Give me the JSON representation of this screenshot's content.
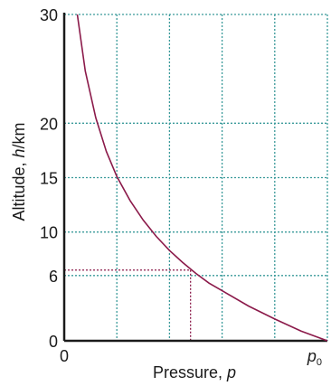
{
  "chart_data": {
    "type": "line",
    "xlabel": "Pressure, ",
    "xlabel_var": "p",
    "ylabel": "Altitude, ",
    "ylabel_var": "h",
    "ylabel_unit": "/km",
    "x_ticks": [
      {
        "value": 0,
        "label": "0"
      },
      {
        "value": 1,
        "label": "p",
        "subscript": "0"
      }
    ],
    "y_ticks": [
      {
        "value": 0,
        "label": "0"
      },
      {
        "value": 6,
        "label": "6"
      },
      {
        "value": 10,
        "label": "10"
      },
      {
        "value": 15,
        "label": "15"
      },
      {
        "value": 20,
        "label": "20"
      },
      {
        "value": 30,
        "label": "30"
      }
    ],
    "xlim": [
      0,
      1
    ],
    "ylim": [
      0,
      30
    ],
    "x_gridlines": [
      0.2,
      0.4,
      0.6,
      0.8,
      1.0
    ],
    "y_gridlines": [
      6,
      10,
      15,
      20,
      30
    ],
    "grid": true,
    "series": [
      {
        "x": [
          0.05,
          0.08,
          0.12,
          0.16,
          0.2,
          0.25,
          0.3,
          0.35,
          0.4,
          0.45,
          0.5,
          0.55,
          0.6,
          0.7,
          0.8,
          0.9,
          1.0
        ],
        "y": [
          30,
          24.8,
          20.5,
          17.4,
          15.1,
          12.9,
          11.1,
          9.6,
          8.3,
          7.2,
          6.2,
          5.3,
          4.6,
          3.2,
          2.0,
          0.9,
          0
        ]
      }
    ],
    "annotation": {
      "x": 0.48,
      "y": 6.5
    },
    "colors": {
      "curve": "#8b1a4a",
      "grid": "#3a9a9a",
      "marker": "#8b1a4a",
      "axis": "#1a1a1a"
    }
  }
}
